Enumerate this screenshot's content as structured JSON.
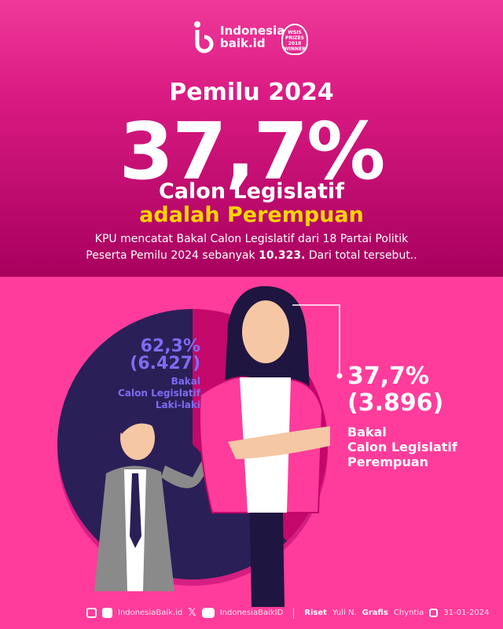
{
  "brand": {
    "name_line1": "Indonesia",
    "name_line2": "baik.id",
    "award": "WSIS PRIZES 2018 WINNER"
  },
  "header": {
    "title": "Pemilu 2024",
    "headline": "37,7%",
    "subtitle_line1": "Calon Legislatif",
    "subtitle_line2": "adalah Perempuan",
    "desc_line1": "KPU mencatat Bakal Calon Legislatif dari 18 Partai Politik",
    "desc_line2_pre": "Peserta Pemilu 2024 sebanyak ",
    "desc_line2_bold": "10.323.",
    "desc_line2_post": " Dari total tersebut.."
  },
  "colors": {
    "male": "#2b1f57",
    "female": "#c4086c",
    "male_label": "#7d6cf2",
    "accent_yellow": "#ffd500",
    "background": "#ff3c9b"
  },
  "chart_data": {
    "type": "pie",
    "slices": [
      {
        "label": "Bakal Calon Legislatif Perempuan",
        "percent_text": "37,7%",
        "count_text": "(3.896)",
        "percent": 37.7,
        "count": 3896,
        "label_lines": [
          "Bakal",
          "Calon Legislatif",
          "Perempuan"
        ]
      },
      {
        "label": "Bakal Calon Legislatif Laki-laki",
        "percent_text": "62,3%",
        "count_text": "(6.427)",
        "percent": 62.3,
        "count": 6427,
        "label_lines": [
          "Bakal",
          "Calon Legislatif",
          "Laki-laki"
        ]
      }
    ]
  },
  "footer": {
    "social1": "IndonesiaBaik.id",
    "social2": "IndonesiaBaikID",
    "riset_label": "Riset",
    "riset_name": "Yuli N.",
    "grafis_label": "Grafis",
    "grafis_name": "Chyntia",
    "date": "31-01-2024"
  }
}
